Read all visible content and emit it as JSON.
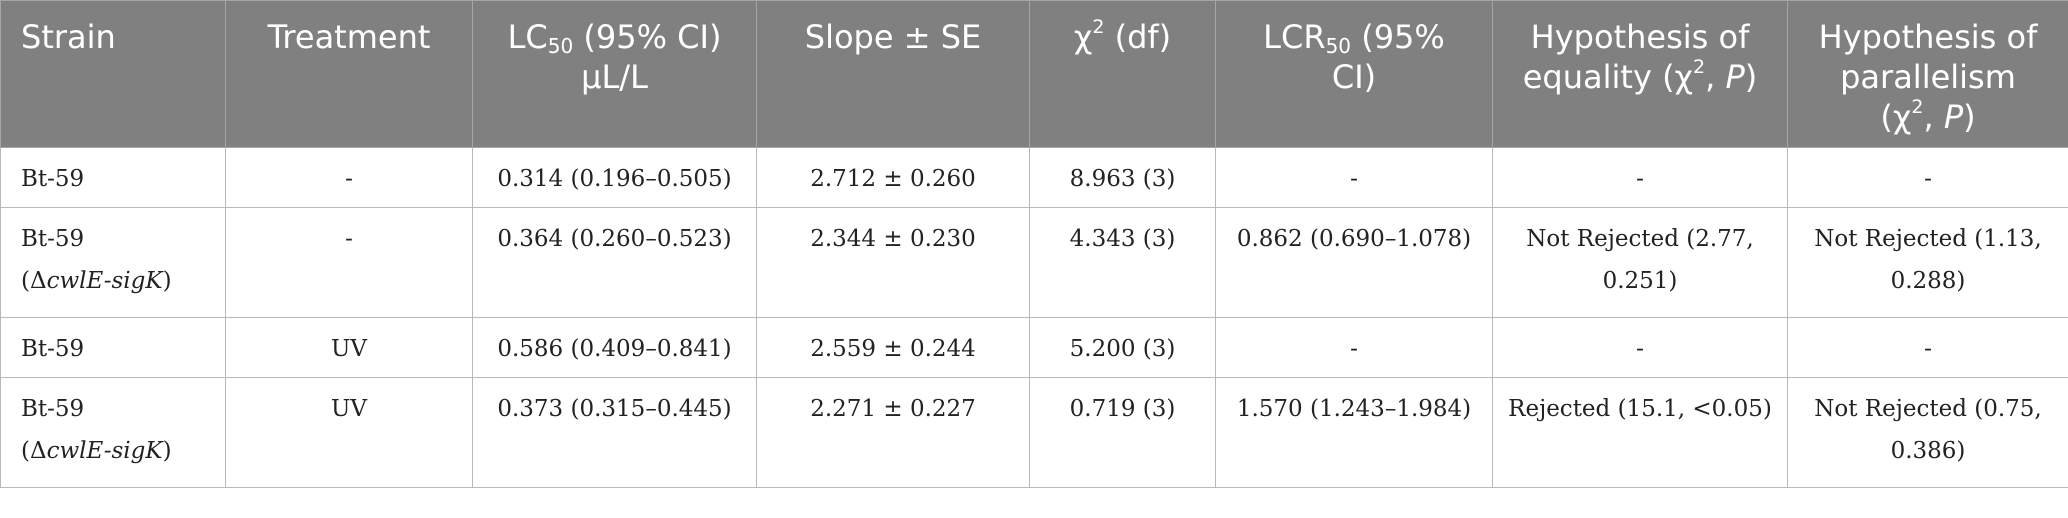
{
  "table": {
    "headers": {
      "strain": "Strain",
      "treatment": "Treatment",
      "lc50_prefix": "LC",
      "lc50_sub": "50",
      "lc50_suffix": " (95% CI)",
      "lc50_unit": "μL/L",
      "slope": "Slope ± SE",
      "chi_prefix": "χ",
      "chi_sup": "2",
      "chi_suffix": " (df)",
      "lcr50_prefix": "LCR",
      "lcr50_sub": "50",
      "lcr50_suffix": " (95%",
      "lcr50_line2": "CI)",
      "equality_line1": "Hypothesis of",
      "equality_line2": "equality (χ",
      "equality_sup": "2",
      "equality_mid": ", ",
      "equality_p": "P",
      "equality_end": ")",
      "parallel_line1": "Hypothesis of",
      "parallel_line2": "parallelism",
      "parallel_line3_open": "(χ",
      "parallel_sup": "2",
      "parallel_mid": ", ",
      "parallel_p": "P",
      "parallel_end": ")"
    },
    "rows": [
      {
        "strain": "Bt-59",
        "strain_mutant": "",
        "treatment": "-",
        "lc50": "0.314 (0.196–0.505)",
        "slope": "2.712 ± 0.260",
        "chi": "8.963 (3)",
        "lcr50": "-",
        "equality_1": "-",
        "equality_2": "",
        "parallel_1": "-",
        "parallel_2": ""
      },
      {
        "strain": "Bt-59",
        "strain_open": "(Δ",
        "strain_mutant": "cwlE-sigK",
        "strain_close": ")",
        "treatment": "-",
        "lc50": "0.364 (0.260–0.523)",
        "slope": "2.344 ± 0.230",
        "chi": "4.343 (3)",
        "lcr50": "0.862 (0.690–1.078)",
        "equality_1": "Not Rejected (2.77,",
        "equality_2": "0.251)",
        "parallel_1": "Not Rejected (1.13,",
        "parallel_2": "0.288)"
      },
      {
        "strain": "Bt-59",
        "strain_mutant": "",
        "treatment": "UV",
        "lc50": "0.586 (0.409–0.841)",
        "slope": "2.559 ± 0.244",
        "chi": "5.200 (3)",
        "lcr50": "-",
        "equality_1": "-",
        "equality_2": "",
        "parallel_1": "-",
        "parallel_2": ""
      },
      {
        "strain": "Bt-59",
        "strain_open": "(Δ",
        "strain_mutant": "cwlE-sigK",
        "strain_close": ")",
        "treatment": "UV",
        "lc50": "0.373 (0.315–0.445)",
        "slope": "2.271 ± 0.227",
        "chi": "0.719 (3)",
        "lcr50": "1.570 (1.243–1.984)",
        "equality_1": "Rejected (15.1, <0.05)",
        "equality_2": "",
        "parallel_1": "Not Rejected (0.75,",
        "parallel_2": "0.386)"
      }
    ]
  }
}
